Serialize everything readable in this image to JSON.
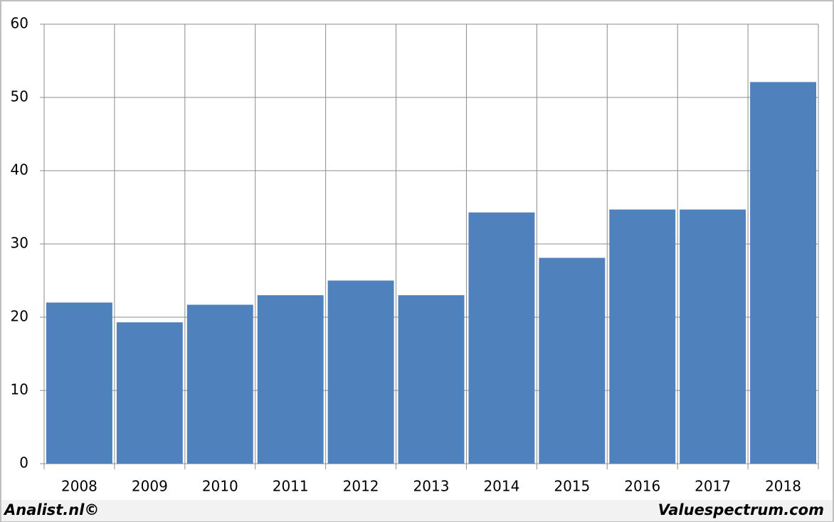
{
  "chart_data": {
    "type": "bar",
    "categories": [
      "2008",
      "2009",
      "2010",
      "2011",
      "2012",
      "2013",
      "2014",
      "2015",
      "2016",
      "2017",
      "2018"
    ],
    "values": [
      22,
      19.3,
      21.7,
      23,
      25,
      23,
      34.3,
      28.1,
      34.7,
      34.7,
      52.1
    ],
    "color": "#4f81bd",
    "ylim": [
      0,
      60
    ],
    "yticks": [
      0,
      10,
      20,
      30,
      40,
      50,
      60
    ],
    "grid": true
  },
  "footer": {
    "left": "Analist.nl©",
    "right": "Valuespectrum.com"
  }
}
